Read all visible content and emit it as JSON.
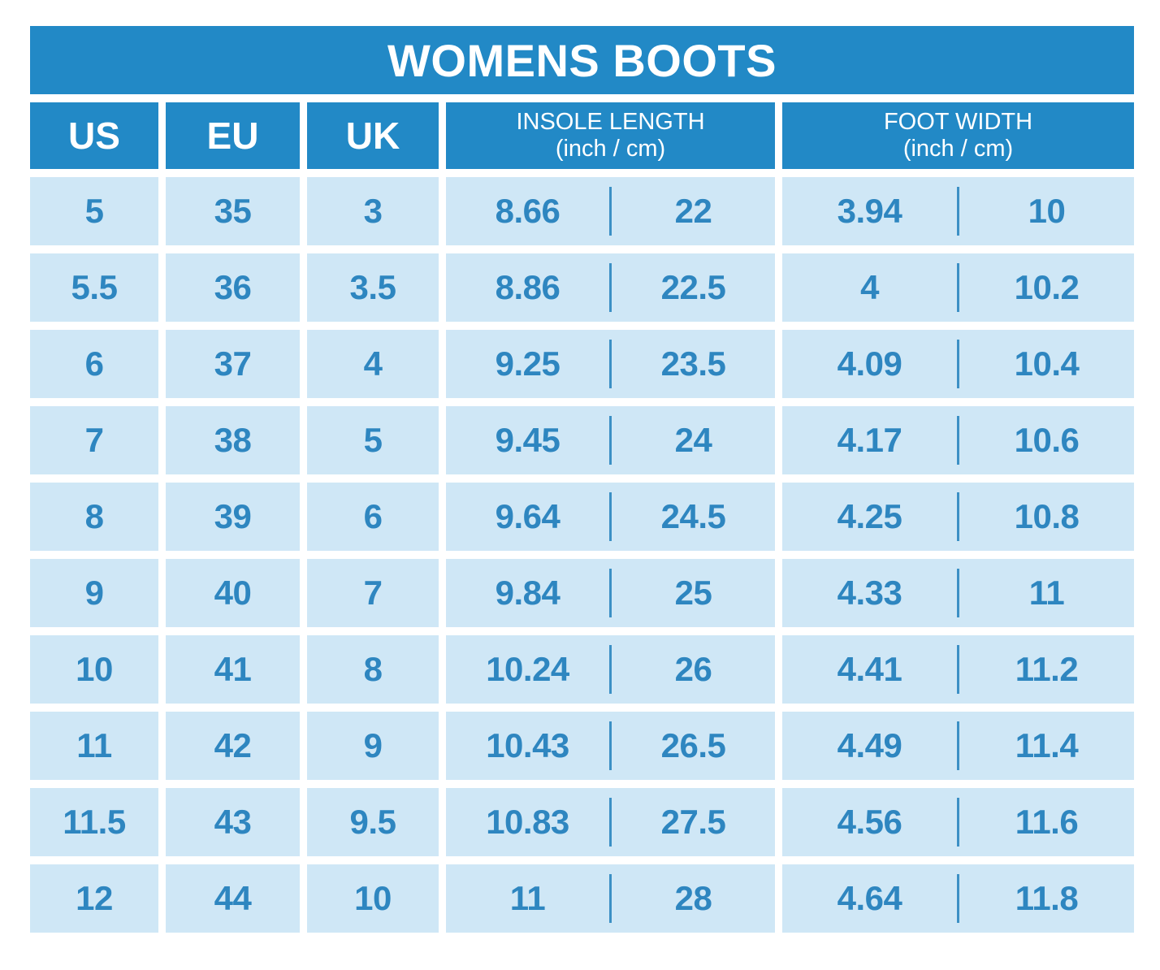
{
  "table": {
    "title": "WOMENS BOOTS",
    "columns": {
      "us": "US",
      "eu": "EU",
      "uk": "UK",
      "insole_line1": "INSOLE LENGTH",
      "insole_line2": "(inch / cm)",
      "width_line1": "FOOT WIDTH",
      "width_line2": "(inch / cm)"
    },
    "rows": [
      {
        "us": "5",
        "eu": "35",
        "uk": "3",
        "insole_in": "8.66",
        "insole_cm": "22",
        "width_in": "3.94",
        "width_cm": "10"
      },
      {
        "us": "5.5",
        "eu": "36",
        "uk": "3.5",
        "insole_in": "8.86",
        "insole_cm": "22.5",
        "width_in": "4",
        "width_cm": "10.2"
      },
      {
        "us": "6",
        "eu": "37",
        "uk": "4",
        "insole_in": "9.25",
        "insole_cm": "23.5",
        "width_in": "4.09",
        "width_cm": "10.4"
      },
      {
        "us": "7",
        "eu": "38",
        "uk": "5",
        "insole_in": "9.45",
        "insole_cm": "24",
        "width_in": "4.17",
        "width_cm": "10.6"
      },
      {
        "us": "8",
        "eu": "39",
        "uk": "6",
        "insole_in": "9.64",
        "insole_cm": "24.5",
        "width_in": "4.25",
        "width_cm": "10.8"
      },
      {
        "us": "9",
        "eu": "40",
        "uk": "7",
        "insole_in": "9.84",
        "insole_cm": "25",
        "width_in": "4.33",
        "width_cm": "11"
      },
      {
        "us": "10",
        "eu": "41",
        "uk": "8",
        "insole_in": "10.24",
        "insole_cm": "26",
        "width_in": "4.41",
        "width_cm": "11.2"
      },
      {
        "us": "11",
        "eu": "42",
        "uk": "9",
        "insole_in": "10.43",
        "insole_cm": "26.5",
        "width_in": "4.49",
        "width_cm": "11.4"
      },
      {
        "us": "11.5",
        "eu": "43",
        "uk": "9.5",
        "insole_in": "10.83",
        "insole_cm": "27.5",
        "width_in": "4.56",
        "width_cm": "11.6"
      },
      {
        "us": "12",
        "eu": "44",
        "uk": "10",
        "insole_in": "11",
        "insole_cm": "28",
        "width_in": "4.64",
        "width_cm": "11.8"
      }
    ],
    "colors": {
      "header_bg": "#2289c6",
      "cell_bg": "#cfe7f6",
      "cell_text": "#2e86c0",
      "header_text": "#ffffff",
      "divider": "#3c90c5"
    }
  },
  "chart_data": {
    "type": "table",
    "title": "WOMENS BOOTS",
    "columns": [
      "US",
      "EU",
      "UK",
      "INSOLE LENGTH (inch / cm)",
      "FOOT WIDTH (inch / cm)"
    ],
    "rows": [
      [
        "5",
        "35",
        "3",
        "8.66 / 22",
        "3.94 / 10"
      ],
      [
        "5.5",
        "36",
        "3.5",
        "8.86 / 22.5",
        "4 / 10.2"
      ],
      [
        "6",
        "37",
        "4",
        "9.25 / 23.5",
        "4.09 / 10.4"
      ],
      [
        "7",
        "38",
        "5",
        "9.45 / 24",
        "4.17 / 10.6"
      ],
      [
        "8",
        "39",
        "6",
        "9.64 / 24.5",
        "4.25 / 10.8"
      ],
      [
        "9",
        "40",
        "7",
        "9.84 / 25",
        "4.33 / 11"
      ],
      [
        "10",
        "41",
        "8",
        "10.24 / 26",
        "4.41 / 11.2"
      ],
      [
        "11",
        "42",
        "9",
        "10.43 / 26.5",
        "4.49 / 11.4"
      ],
      [
        "11.5",
        "43",
        "9.5",
        "10.83 / 27.5",
        "4.56 / 11.6"
      ],
      [
        "12",
        "44",
        "10",
        "11 / 28",
        "4.64 / 11.8"
      ]
    ]
  }
}
